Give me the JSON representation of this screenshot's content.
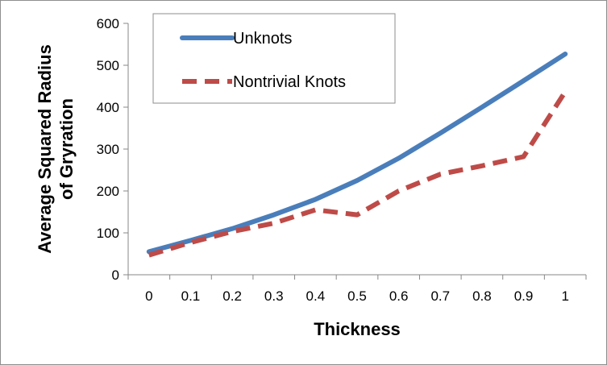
{
  "chart_data": {
    "type": "line",
    "title": "",
    "xlabel": "Thickness",
    "ylabel": "Average Squared Radius of Gryration",
    "ylabel_lines": [
      "Average Squared Radius",
      "of Gryration"
    ],
    "x": [
      0,
      0.1,
      0.2,
      0.3,
      0.4,
      0.5,
      0.6,
      0.7,
      0.8,
      0.9,
      1
    ],
    "x_tick_labels": [
      "0",
      "0.1",
      "0.2",
      "0.3",
      "0.4",
      "0.5",
      "0.6",
      "0.7",
      "0.8",
      "0.9",
      "1"
    ],
    "ylim": [
      0,
      600
    ],
    "y_ticks": [
      0,
      100,
      200,
      300,
      400,
      500,
      600
    ],
    "y_tick_labels": [
      "0",
      "100",
      "200",
      "300",
      "400",
      "500",
      "600"
    ],
    "grid": false,
    "legend_position": "top-left",
    "series": [
      {
        "name": "Unknots",
        "style": "solid",
        "color": "#4a7ebb",
        "values": [
          55,
          82,
          110,
          143,
          180,
          225,
          278,
          338,
          400,
          463,
          527
        ]
      },
      {
        "name": "Nontrivial Knots",
        "style": "dashed",
        "color": "#be4b48",
        "values": [
          47,
          77,
          103,
          123,
          155,
          143,
          200,
          240,
          260,
          282,
          437
        ]
      }
    ]
  }
}
